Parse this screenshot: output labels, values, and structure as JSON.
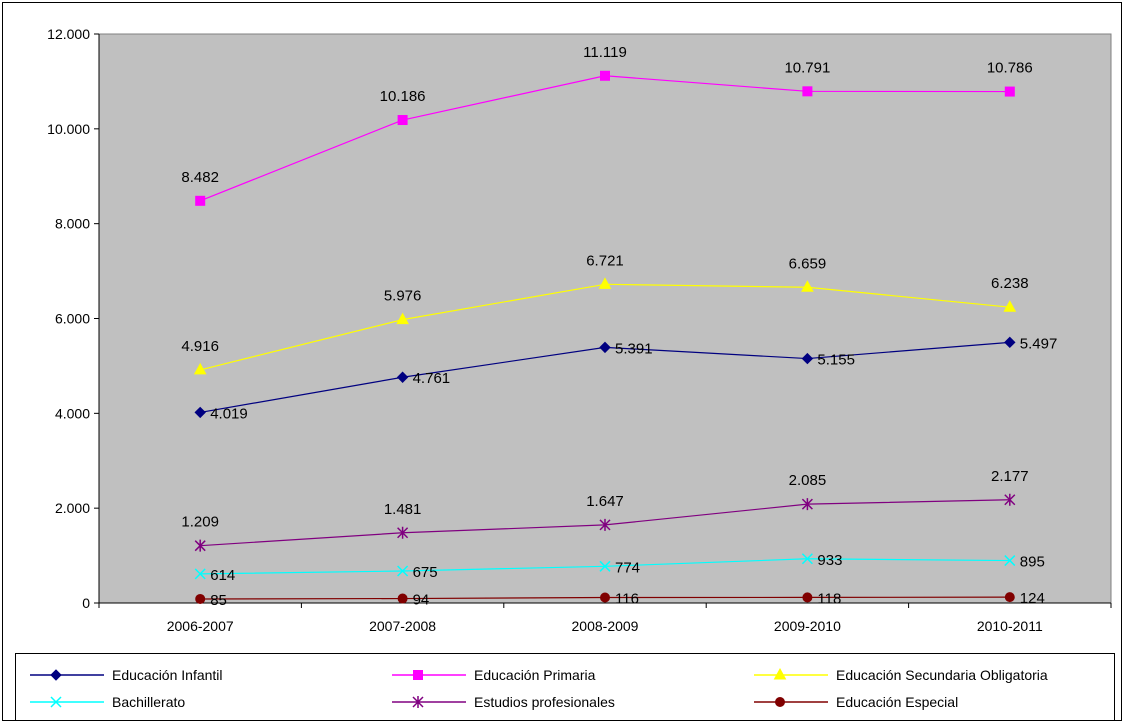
{
  "chart_data": {
    "type": "line",
    "categories": [
      "2006-2007",
      "2007-2008",
      "2008-2009",
      "2009-2010",
      "2010-2011"
    ],
    "ylim": [
      0,
      12000
    ],
    "yticks": [
      0,
      2000,
      4000,
      6000,
      8000,
      10000,
      12000
    ],
    "ytick_labels": [
      "0",
      "2.000",
      "4.000",
      "6.000",
      "8.000",
      "10.000",
      "12.000"
    ],
    "grid": false,
    "plot_background": "#C0C0C0",
    "legend_position": "bottom",
    "series": [
      {
        "name": "Educación Infantil",
        "values": [
          4019,
          4761,
          5391,
          5155,
          5497
        ],
        "labels": [
          "4.019",
          "4.761",
          "5.391",
          "5.155",
          "5.497"
        ],
        "color": "#000080",
        "marker": "diamond",
        "label_placement": "right"
      },
      {
        "name": "Educación Primaria",
        "values": [
          8482,
          10186,
          11119,
          10791,
          10786
        ],
        "labels": [
          "8.482",
          "10.186",
          "11.119",
          "10.791",
          "10.786"
        ],
        "color": "#FF00FF",
        "marker": "square",
        "label_placement": "above"
      },
      {
        "name": "Educación Secundaria Obligatoria",
        "values": [
          4916,
          5976,
          6721,
          6659,
          6238
        ],
        "labels": [
          "4.916",
          "5.976",
          "6.721",
          "6.659",
          "6.238"
        ],
        "color": "#FFFF00",
        "marker": "triangle",
        "label_placement": "above"
      },
      {
        "name": "Bachillerato",
        "values": [
          614,
          675,
          774,
          933,
          895
        ],
        "labels": [
          "614",
          "675",
          "774",
          "933",
          "895"
        ],
        "color": "#00FFFF",
        "marker": "x",
        "label_placement": "right"
      },
      {
        "name": "Estudios profesionales",
        "values": [
          1209,
          1481,
          1647,
          2085,
          2177
        ],
        "labels": [
          "1.209",
          "1.481",
          "1.647",
          "2.085",
          "2.177"
        ],
        "color": "#800080",
        "marker": "star",
        "label_placement": "above"
      },
      {
        "name": "Educación Especial",
        "values": [
          85,
          94,
          116,
          118,
          124
        ],
        "labels": [
          "85",
          "94",
          "116",
          "118",
          "124"
        ],
        "color": "#800000",
        "marker": "circle",
        "label_placement": "right"
      }
    ]
  }
}
